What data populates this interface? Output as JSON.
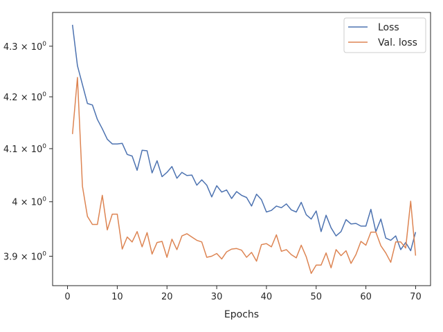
{
  "chart_data": {
    "type": "line",
    "title": "",
    "xlabel": "Epochs",
    "ylabel": "",
    "yscale": "log",
    "xlim": [
      -3,
      73
    ],
    "ylim": [
      3.847,
      4.368
    ],
    "grid": false,
    "legend_position": "top-right",
    "x_ticks": [
      0,
      10,
      20,
      30,
      40,
      50,
      60,
      70
    ],
    "x_tick_labels": [
      "0",
      "10",
      "20",
      "30",
      "40",
      "50",
      "60",
      "70"
    ],
    "y_ticks": [
      {
        "value": 4.3,
        "mantissa": "4.3",
        "base": "10",
        "exp": "0"
      },
      {
        "value": 4.2,
        "mantissa": "4.2",
        "base": "10",
        "exp": "0"
      },
      {
        "value": 4.1,
        "mantissa": "4.1",
        "base": "10",
        "exp": "0"
      },
      {
        "value": 4.0,
        "mantissa": "4",
        "base": "10",
        "exp": "0"
      },
      {
        "value": 3.9,
        "mantissa": "3.9",
        "base": "10",
        "exp": "0"
      }
    ],
    "x": [
      1,
      2,
      3,
      4,
      5,
      6,
      7,
      8,
      9,
      10,
      11,
      12,
      13,
      14,
      15,
      16,
      17,
      18,
      19,
      20,
      21,
      22,
      23,
      24,
      25,
      26,
      27,
      28,
      29,
      30,
      31,
      32,
      33,
      34,
      35,
      36,
      37,
      38,
      39,
      40,
      41,
      42,
      43,
      44,
      45,
      46,
      47,
      48,
      49,
      50,
      51,
      52,
      53,
      54,
      55,
      56,
      57,
      58,
      59,
      60,
      61,
      62,
      63,
      64,
      65,
      66,
      67,
      68,
      69,
      70
    ],
    "series": [
      {
        "name": "Loss",
        "color": "#4c72b0",
        "values": [
          4.343,
          4.261,
          4.224,
          4.187,
          4.184,
          4.156,
          4.138,
          4.118,
          4.109,
          4.109,
          4.11,
          4.089,
          4.086,
          4.059,
          4.097,
          4.096,
          4.054,
          4.077,
          4.047,
          4.055,
          4.066,
          4.044,
          4.055,
          4.049,
          4.05,
          4.031,
          4.041,
          4.031,
          4.009,
          4.03,
          4.018,
          4.022,
          4.006,
          4.019,
          4.012,
          4.008,
          3.992,
          4.014,
          4.004,
          3.981,
          3.984,
          3.992,
          3.989,
          3.996,
          3.985,
          3.981,
          3.999,
          3.976,
          3.968,
          3.983,
          3.945,
          3.975,
          3.952,
          3.937,
          3.945,
          3.967,
          3.959,
          3.96,
          3.955,
          3.955,
          3.986,
          3.945,
          3.968,
          3.933,
          3.929,
          3.937,
          3.912,
          3.925,
          3.91,
          3.944
        ]
      },
      {
        "name": "Val. loss",
        "color": "#dd8452",
        "values": [
          4.128,
          4.238,
          4.029,
          3.973,
          3.958,
          3.958,
          4.012,
          3.948,
          3.977,
          3.977,
          3.913,
          3.935,
          3.926,
          3.945,
          3.917,
          3.943,
          3.904,
          3.925,
          3.927,
          3.898,
          3.931,
          3.912,
          3.937,
          3.941,
          3.935,
          3.929,
          3.926,
          3.898,
          3.9,
          3.905,
          3.895,
          3.908,
          3.913,
          3.914,
          3.911,
          3.898,
          3.907,
          3.891,
          3.921,
          3.923,
          3.917,
          3.939,
          3.909,
          3.912,
          3.903,
          3.897,
          3.92,
          3.899,
          3.869,
          3.884,
          3.884,
          3.906,
          3.879,
          3.912,
          3.901,
          3.91,
          3.887,
          3.903,
          3.927,
          3.92,
          3.944,
          3.944,
          3.919,
          3.906,
          3.889,
          3.926,
          3.926,
          3.915,
          4.001,
          3.901
        ]
      }
    ]
  }
}
